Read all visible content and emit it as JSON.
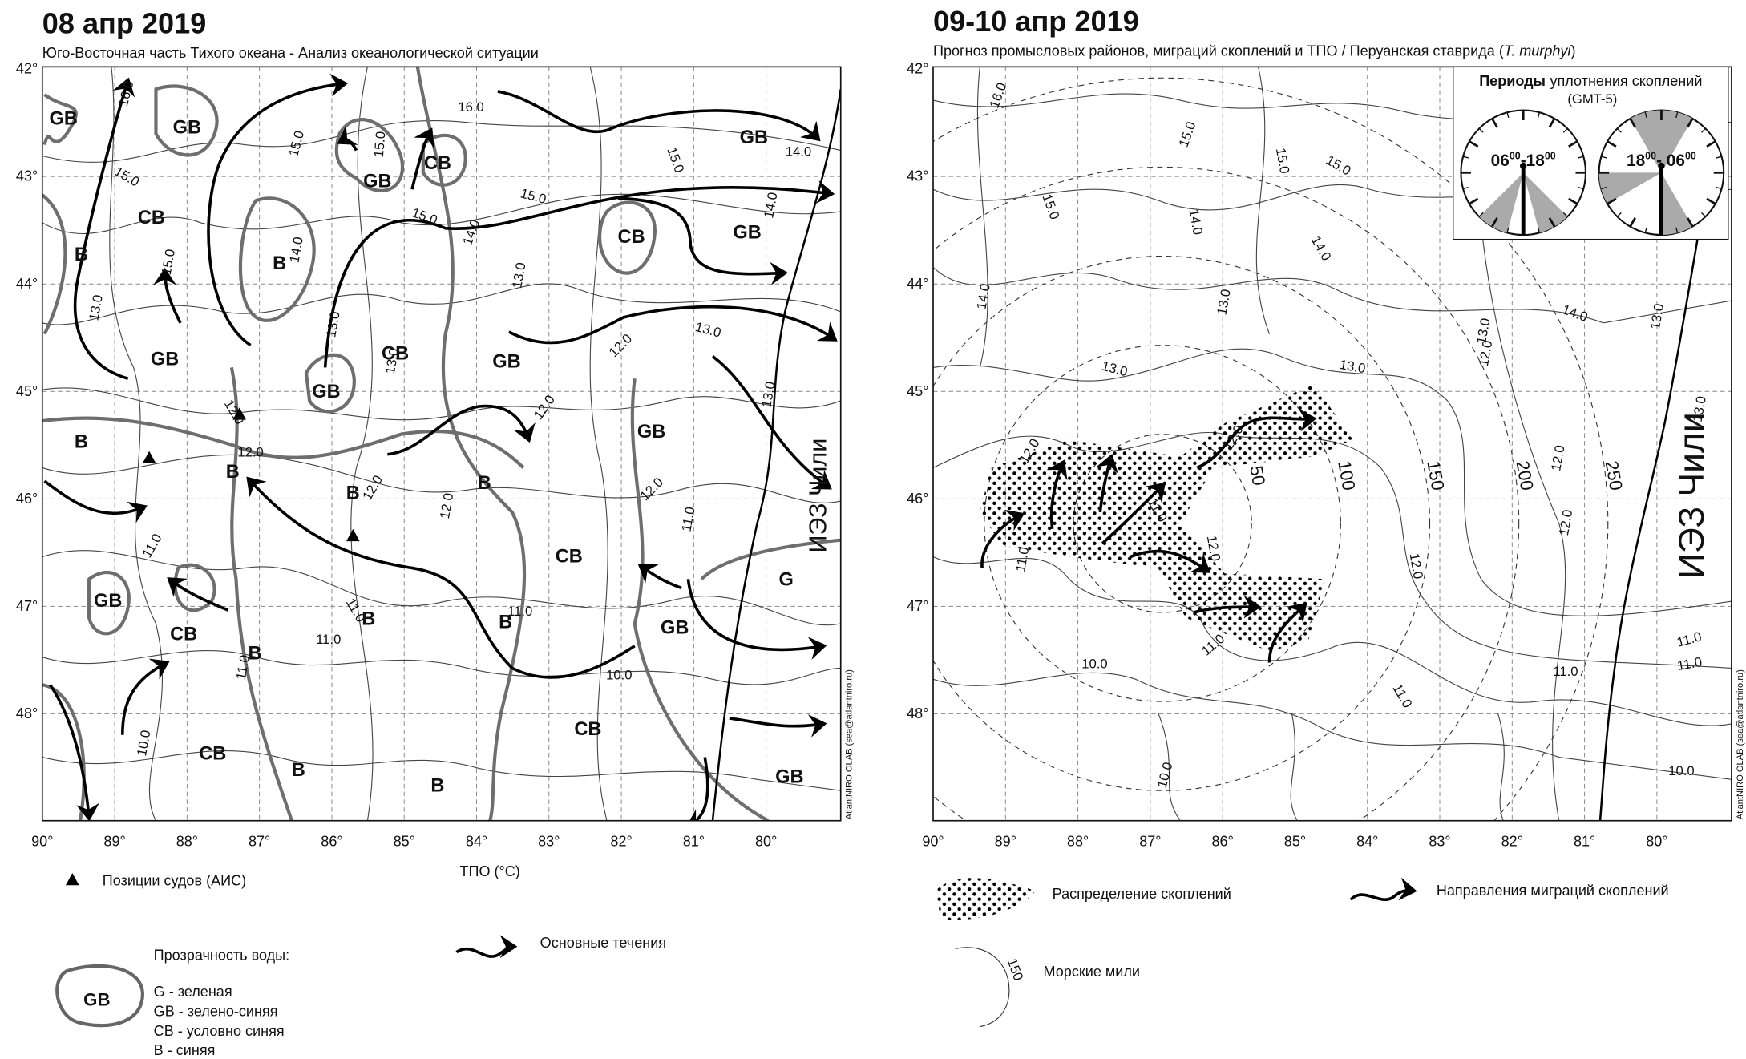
{
  "left_map": {
    "title": "08 апр 2019",
    "subtitle": "Юго-Восточная часть Тихого океана - Анализ океанологической ситуации",
    "lat_labels": [
      "42°",
      "43°",
      "44°",
      "45°",
      "46°",
      "47°",
      "48°"
    ],
    "lon_labels": [
      "90°",
      "89°",
      "88°",
      "87°",
      "86°",
      "85°",
      "84°",
      "83°",
      "82°",
      "81°",
      "80°"
    ],
    "axis_label": "ТПО (°C)",
    "credit": "AtlantNIRO OLAB (sea@atlantniro.ru)",
    "eez_label": "ИЭЗ Чили",
    "zone_labels": [
      "GB",
      "GB",
      "GB",
      "CB",
      "GB",
      "CB",
      "B",
      "B",
      "CB",
      "GB",
      "GB",
      "CB",
      "GB",
      "GB",
      "B",
      "GB",
      "B",
      "B",
      "B",
      "CB",
      "GB",
      "CB",
      "B",
      "B",
      "GB",
      "B",
      "CB",
      "B",
      "B",
      "CB",
      "GB",
      "G"
    ],
    "contour_labels": [
      "16.0",
      "16.0",
      "15.0",
      "15.0",
      "15.0",
      "15.0",
      "15.0",
      "15.0",
      "15.0",
      "14.0",
      "14.0",
      "14.0",
      "14.0",
      "13.0",
      "13.0",
      "13.0",
      "13.0",
      "13.0",
      "13.0",
      "12.0",
      "12.0",
      "12.0",
      "12.0",
      "12.0",
      "12.0",
      "12.0",
      "11.0",
      "11.0",
      "11.0",
      "11.0",
      "11.0",
      "11.0",
      "10.0",
      "10.0"
    ]
  },
  "right_map": {
    "title": "09-10 апр 2019",
    "subtitle_parts": [
      "Прогноз промысловых районов, миграций скоплений и ТПО / Перуанская ставрида (",
      "T. murphyi",
      ")"
    ],
    "lat_labels": [
      "42°",
      "43°",
      "44°",
      "45°",
      "46°",
      "47°",
      "48°"
    ],
    "lon_labels": [
      "90°",
      "89°",
      "88°",
      "87°",
      "86°",
      "85°",
      "84°",
      "83°",
      "82°",
      "81°",
      "80°"
    ],
    "credit": "AtlantNIRO OLAB (sea@atlantniro.ru)",
    "eez_label": "ИЭЗ Чили",
    "distance_labels": [
      "50",
      "100",
      "150",
      "200",
      "250"
    ],
    "contour_labels": [
      "16.0",
      "15.0",
      "15.0",
      "15.0",
      "15.0",
      "14.0",
      "14.0",
      "14.0",
      "14.0",
      "13.0",
      "13.0",
      "13.0",
      "13.0",
      "13.0",
      "13.0",
      "12.0",
      "12.0",
      "12.0",
      "12.0",
      "12.0",
      "12.0",
      "12.0",
      "11.0",
      "11.0",
      "11.0",
      "11.0",
      "11.0",
      "11.0",
      "11.0",
      "10.0",
      "10.0",
      "10.0"
    ],
    "inset": {
      "title_parts": [
        "Периоды",
        "уплотнения скоплений"
      ],
      "timezone": "(GMT-5)",
      "clocks": [
        [
          "06",
          "00",
          "-18",
          "00"
        ],
        [
          "18",
          "00",
          "- 06",
          "00"
        ]
      ]
    }
  },
  "legend": {
    "ships": "Позиции судов (АИС)",
    "currents": "Основные течения",
    "transparency_title": "Прозрачность воды:",
    "transparency_sample": "GB",
    "transparency_items": [
      "G - зеленая",
      "GB - зелено-синяя",
      "CB - условно синяя",
      "B - синяя"
    ],
    "aggregations": "Распределение скоплений",
    "migrations": "Направления миграций скоплений",
    "nautical_miles": "Морские мили",
    "miles_sample": "150"
  }
}
